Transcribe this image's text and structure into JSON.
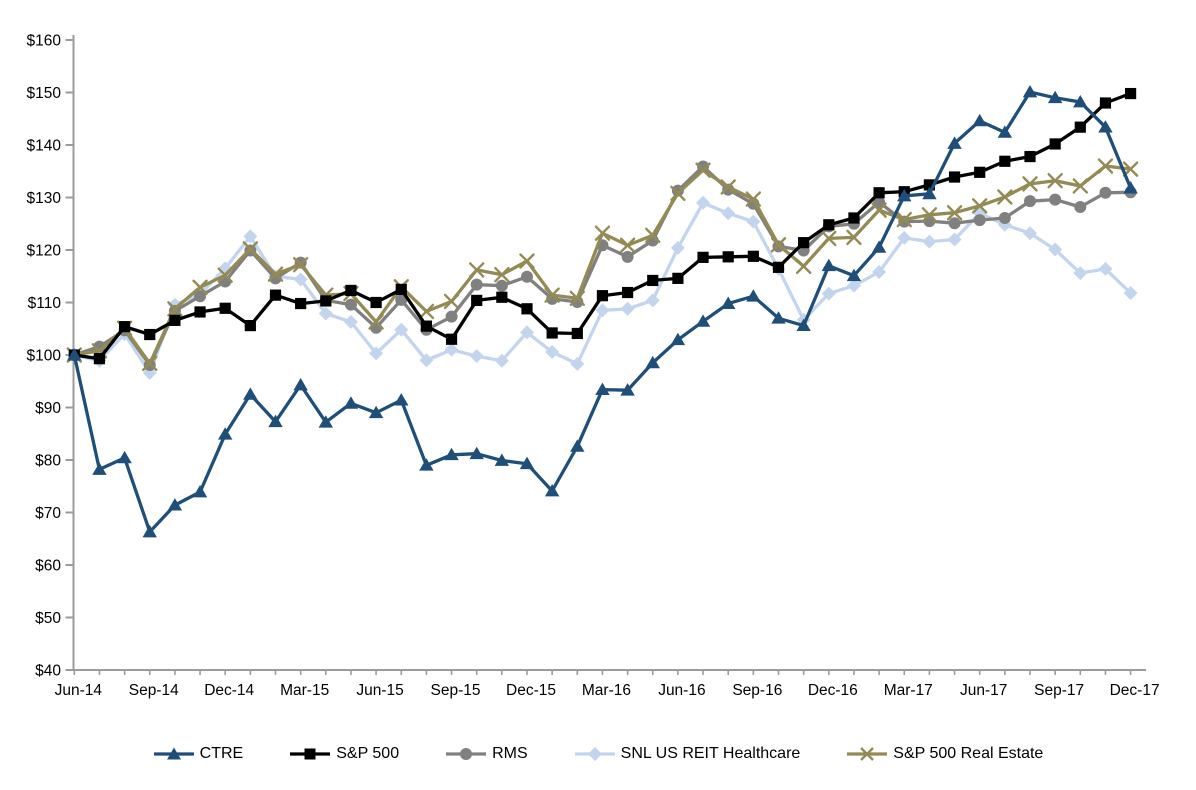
{
  "page": {
    "background": "#FFFFFF"
  },
  "chart_data": {
    "type": "line",
    "title": "",
    "xlabel": "",
    "ylabel": "",
    "y_min": 40,
    "y_max": 160,
    "y_step": 10,
    "y_prefix": "$",
    "grid": false,
    "legend_position": "bottom",
    "axis_color": "#9B9B9B",
    "label_color": "#000000",
    "x": [
      "Jun-14",
      "Jul-14",
      "Aug-14",
      "Sep-14",
      "Oct-14",
      "Nov-14",
      "Dec-14",
      "Jan-15",
      "Feb-15",
      "Mar-15",
      "Apr-15",
      "May-15",
      "Jun-15",
      "Jul-15",
      "Aug-15",
      "Sep-15",
      "Oct-15",
      "Nov-15",
      "Dec-15",
      "Jan-16",
      "Feb-16",
      "Mar-16",
      "Apr-16",
      "May-16",
      "Jun-16",
      "Jul-16",
      "Aug-16",
      "Sep-16",
      "Oct-16",
      "Nov-16",
      "Dec-16",
      "Jan-17",
      "Feb-17",
      "Mar-17",
      "Apr-17",
      "May-17",
      "Jun-17",
      "Jul-17",
      "Aug-17",
      "Sep-17",
      "Oct-17",
      "Nov-17",
      "Dec-17"
    ],
    "x_tick_labels": [
      "Jun-14",
      "Sep-14",
      "Dec-14",
      "Mar-15",
      "Jun-15",
      "Sep-15",
      "Dec-15",
      "Mar-16",
      "Jun-16",
      "Sep-16",
      "Dec-16",
      "Mar-17",
      "Jun-17",
      "Sep-17",
      "Dec-17"
    ],
    "x_tick_every": 3,
    "series": [
      {
        "name": "CTRE",
        "color": "#1F4E79",
        "marker": "triangle",
        "values": [
          100,
          78.2,
          80.4,
          66.3,
          71.4,
          73.9,
          84.9,
          92.5,
          87.3,
          94.3,
          87.2,
          90.8,
          89.0,
          91.4,
          79.0,
          81.0,
          81.2,
          79.9,
          79.3,
          74.1,
          82.6,
          93.4,
          93.3,
          98.5,
          102.9,
          106.4,
          109.8,
          111.2,
          107.0,
          105.6,
          117.0,
          115.1,
          120.5,
          130.3,
          130.7,
          140.3,
          144.6,
          142.4,
          150.1,
          149.0,
          148.2,
          143.4,
          131.8
        ]
      },
      {
        "name": "S&P 500",
        "color": "#000000",
        "marker": "square",
        "values": [
          100,
          99.3,
          105.4,
          103.9,
          106.6,
          108.2,
          108.9,
          105.6,
          111.4,
          109.8,
          110.3,
          112.3,
          110.0,
          112.5,
          105.5,
          103.0,
          110.4,
          111.0,
          108.8,
          104.2,
          104.1,
          111.3,
          111.9,
          114.2,
          114.6,
          118.6,
          118.7,
          118.8,
          116.7,
          121.4,
          124.8,
          126.1,
          130.9,
          131.1,
          132.4,
          133.9,
          134.8,
          136.9,
          137.8,
          140.2,
          143.4,
          148.0,
          149.8
        ]
      },
      {
        "name": "RMS",
        "color": "#808080",
        "marker": "circle",
        "values": [
          100,
          101.6,
          104.7,
          98.1,
          108.4,
          111.2,
          114.0,
          119.9,
          114.6,
          117.6,
          110.4,
          109.6,
          105.2,
          110.5,
          104.8,
          107.3,
          113.4,
          113.2,
          114.9,
          110.7,
          110.1,
          120.9,
          118.7,
          121.8,
          131.3,
          135.9,
          131.5,
          128.8,
          120.7,
          119.9,
          124.5,
          125.0,
          129.1,
          125.4,
          125.5,
          125.1,
          125.7,
          126.1,
          129.3,
          129.6,
          128.2,
          130.9,
          131.0
        ]
      },
      {
        "name": "SNL US REIT Healthcare",
        "color": "#C3D5EE",
        "marker": "diamond",
        "values": [
          100,
          98.9,
          104.0,
          96.6,
          109.6,
          111.6,
          116.5,
          122.6,
          115.0,
          114.4,
          107.9,
          106.3,
          100.3,
          104.8,
          99.0,
          101.0,
          99.8,
          98.9,
          104.3,
          100.6,
          98.3,
          108.5,
          108.8,
          110.4,
          120.4,
          129.0,
          127.0,
          125.4,
          116.4,
          106.7,
          111.7,
          113.2,
          115.8,
          122.3,
          121.6,
          122.0,
          127.0,
          124.8,
          123.2,
          120.1,
          115.6,
          116.4,
          111.8
        ]
      },
      {
        "name": "S&P 500 Real Estate",
        "color": "#948A54",
        "marker": "x",
        "values": [
          100,
          100.8,
          105.1,
          98.4,
          108.8,
          112.9,
          115.2,
          120.2,
          115.4,
          117.2,
          111.4,
          111.7,
          106.3,
          113.0,
          108.3,
          110.2,
          116.2,
          115.3,
          117.9,
          111.4,
          110.8,
          123.2,
          120.9,
          122.8,
          130.8,
          135.2,
          132.0,
          129.7,
          121.0,
          116.9,
          122.2,
          122.4,
          127.6,
          125.8,
          126.7,
          127.1,
          128.4,
          130.1,
          132.6,
          133.2,
          132.2,
          136.0,
          135.4
        ]
      }
    ],
    "draw_order": [
      3,
      2,
      4,
      1,
      0
    ],
    "legend_order": [
      0,
      1,
      2,
      3,
      4
    ]
  }
}
